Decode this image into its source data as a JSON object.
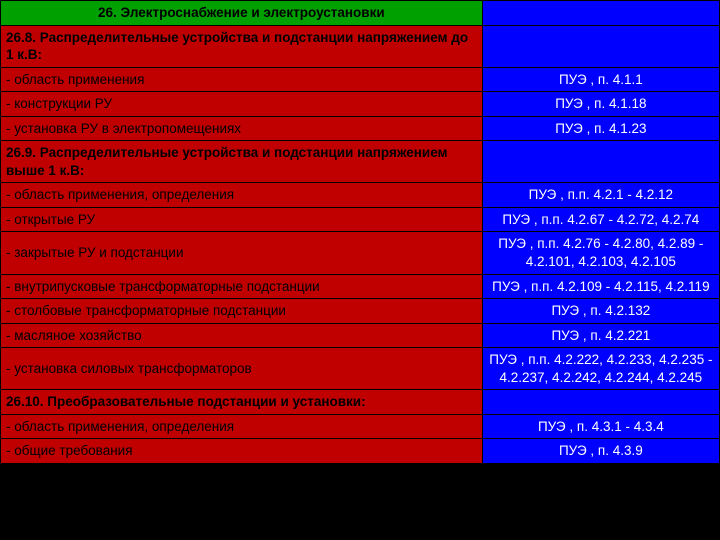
{
  "colors": {
    "header_bg": "#00a000",
    "left_bg": "#c00000",
    "right_bg": "#0000ff",
    "header_text": "#000000",
    "left_text": "#000000",
    "right_text": "#ffffff"
  },
  "header": {
    "title": "26. Электроснабжение и электроустановки"
  },
  "rows": [
    {
      "left": "26.8. Распределительные устройства и подстанции напряжением до 1 к.В:",
      "right": "",
      "section": true
    },
    {
      "left": "- область применения",
      "right": "ПУЭ , п. 4.1.1"
    },
    {
      "left": "- конструкции РУ",
      "right": "ПУЭ , п. 4.1.18"
    },
    {
      "left": "- установка РУ в электропомещениях",
      "right": "ПУЭ , п. 4.1.23"
    },
    {
      "left": "26.9. Распределительные устройства и подстанции напряжением выше 1 к.В:",
      "right": "",
      "section": true
    },
    {
      "left": "- область применения, определения",
      "right": "ПУЭ , п.п. 4.2.1 - 4.2.12"
    },
    {
      "left": "- открытые РУ",
      "right": "ПУЭ , п.п. 4.2.67 - 4.2.72, 4.2.74"
    },
    {
      "left": "- закрытые РУ и подстанции",
      "right": "ПУЭ , п.п. 4.2.76 - 4.2.80, 4.2.89 - 4.2.101, 4.2.103, 4.2.105"
    },
    {
      "left": "- внутрипусковые трансформаторные подстанции",
      "right": "ПУЭ , п.п. 4.2.109 - 4.2.115, 4.2.119"
    },
    {
      "left": "- столбовые трансформаторные подстанции",
      "right": "ПУЭ , п. 4.2.132"
    },
    {
      "left": "- масляное хозяйство",
      "right": "ПУЭ , п. 4.2.221"
    },
    {
      "left": "- установка силовых трансформаторов",
      "right": "ПУЭ , п.п. 4.2.222, 4.2.233, 4.2.235 - 4.2.237, 4.2.242, 4.2.244, 4.2.245"
    },
    {
      "left": "26.10. Преобразовательные подстанции и установки:",
      "right": "",
      "section": true
    },
    {
      "left": "- область применения, определения",
      "right": "ПУЭ , п. 4.3.1 - 4.3.4"
    },
    {
      "left": "- общие требования",
      "right": "ПУЭ , п. 4.3.9"
    }
  ]
}
